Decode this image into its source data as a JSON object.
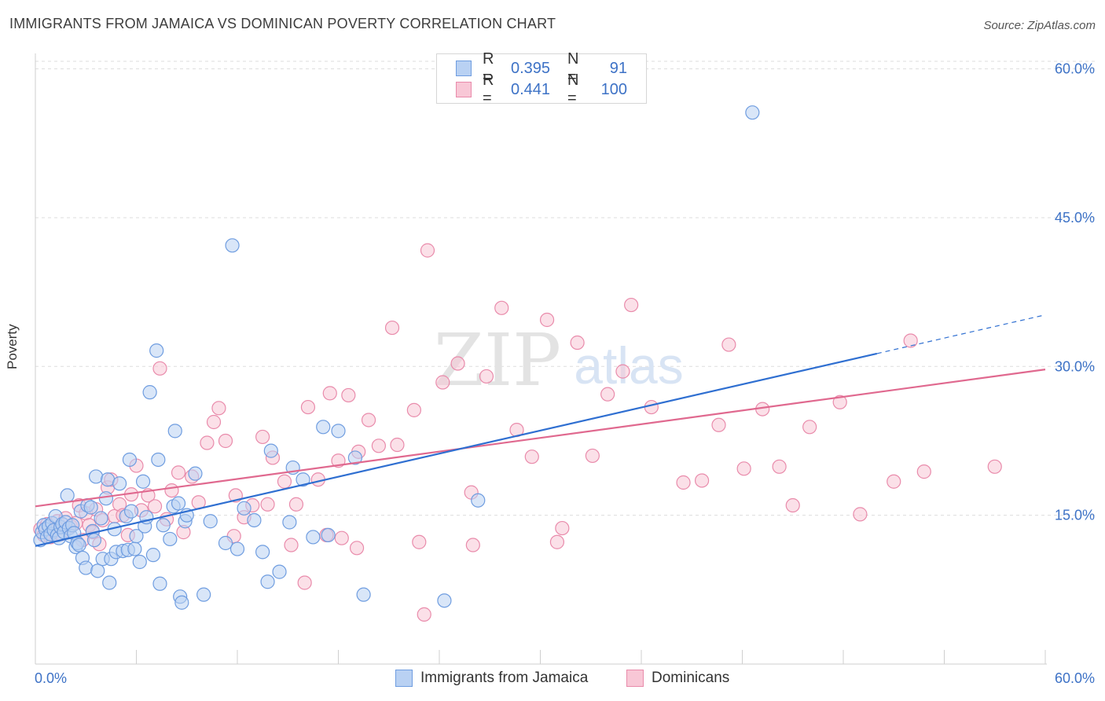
{
  "title": "IMMIGRANTS FROM JAMAICA VS DOMINICAN POVERTY CORRELATION CHART",
  "source": "Source: ZipAtlas.com",
  "watermark": {
    "zip": "ZIP",
    "atlas": "atlas"
  },
  "legend": {
    "r_label": "R =",
    "n_label": "N =",
    "entries": [
      {
        "name": "Immigrants from Jamaica",
        "r": "0.395",
        "n": "91",
        "fill": "#b9d1f3",
        "stroke": "#6f9de0"
      },
      {
        "name": "Dominicans",
        "r": "0.441",
        "n": "100",
        "fill": "#f8c7d6",
        "stroke": "#e98bab"
      }
    ]
  },
  "colors": {
    "blue_line": "#2f6fd1",
    "pink_line": "#e0698f",
    "axis_label": "#3d72c6",
    "grid": "#dddddd"
  },
  "chart_data": {
    "type": "scatter",
    "title": "IMMIGRANTS FROM JAMAICA VS DOMINICAN POVERTY CORRELATION CHART",
    "xlabel": "",
    "ylabel": "Poverty",
    "xlim": [
      0,
      60
    ],
    "ylim": [
      0,
      61
    ],
    "x_tick_labels": [
      "0.0%",
      "60.0%"
    ],
    "y_ticks": [
      15,
      30,
      45,
      60
    ],
    "y_tick_labels": [
      "15.0%",
      "30.0%",
      "45.0%",
      "60.0%"
    ],
    "grid": "horizontal dashed",
    "legend_position": "top-center",
    "series": [
      {
        "name": "Immigrants from Jamaica",
        "color": "#6f9de0",
        "trend": {
          "x": [
            0,
            50,
            60
          ],
          "y": [
            11.9,
            31.3,
            35.2
          ],
          "solid_until": 50
        },
        "points": [
          [
            0.3,
            12.5
          ],
          [
            0.4,
            13.3
          ],
          [
            0.5,
            14.0
          ],
          [
            0.6,
            13.6
          ],
          [
            0.7,
            12.8
          ],
          [
            0.8,
            13.9
          ],
          [
            0.9,
            13.1
          ],
          [
            1.0,
            14.2
          ],
          [
            1.1,
            13.5
          ],
          [
            1.2,
            14.9
          ],
          [
            1.3,
            13.0
          ],
          [
            1.4,
            12.7
          ],
          [
            1.5,
            13.8
          ],
          [
            1.6,
            14.1
          ],
          [
            1.7,
            13.3
          ],
          [
            1.8,
            14.3
          ],
          [
            1.9,
            17.0
          ],
          [
            2.0,
            13.7
          ],
          [
            2.1,
            12.9
          ],
          [
            2.2,
            14.0
          ],
          [
            2.3,
            13.2
          ],
          [
            2.4,
            11.8
          ],
          [
            2.5,
            12.2
          ],
          [
            2.6,
            12.0
          ],
          [
            2.7,
            15.4
          ],
          [
            2.8,
            10.7
          ],
          [
            3.0,
            9.7
          ],
          [
            3.1,
            16.0
          ],
          [
            3.3,
            15.8
          ],
          [
            3.4,
            13.4
          ],
          [
            3.5,
            12.5
          ],
          [
            3.6,
            18.9
          ],
          [
            3.7,
            9.4
          ],
          [
            3.9,
            14.7
          ],
          [
            4.0,
            10.6
          ],
          [
            4.2,
            16.7
          ],
          [
            4.3,
            18.6
          ],
          [
            4.4,
            8.2
          ],
          [
            4.5,
            10.6
          ],
          [
            4.7,
            13.6
          ],
          [
            4.8,
            11.3
          ],
          [
            5.0,
            18.2
          ],
          [
            5.2,
            11.4
          ],
          [
            5.4,
            14.9
          ],
          [
            5.5,
            11.5
          ],
          [
            5.6,
            20.6
          ],
          [
            5.7,
            15.4
          ],
          [
            5.9,
            11.6
          ],
          [
            6.0,
            12.9
          ],
          [
            6.2,
            10.3
          ],
          [
            6.4,
            18.4
          ],
          [
            6.5,
            13.9
          ],
          [
            6.6,
            14.8
          ],
          [
            6.8,
            27.4
          ],
          [
            7.0,
            11.0
          ],
          [
            7.2,
            31.6
          ],
          [
            7.3,
            20.6
          ],
          [
            7.4,
            8.1
          ],
          [
            7.6,
            14.0
          ],
          [
            8.0,
            12.6
          ],
          [
            8.2,
            15.9
          ],
          [
            8.3,
            23.5
          ],
          [
            8.6,
            6.8
          ],
          [
            8.9,
            14.4
          ],
          [
            9.0,
            15.0
          ],
          [
            9.5,
            19.2
          ],
          [
            10.4,
            14.4
          ],
          [
            11.3,
            12.2
          ],
          [
            11.7,
            42.2
          ],
          [
            12.4,
            15.7
          ],
          [
            13.5,
            11.3
          ],
          [
            13.8,
            8.3
          ],
          [
            14.0,
            21.5
          ],
          [
            15.1,
            14.3
          ],
          [
            15.9,
            18.6
          ],
          [
            17.1,
            23.9
          ],
          [
            17.4,
            13.0
          ],
          [
            18.0,
            23.5
          ],
          [
            19.0,
            20.8
          ],
          [
            24.3,
            6.4
          ],
          [
            26.3,
            16.5
          ],
          [
            42.6,
            55.6
          ],
          [
            8.7,
            6.2
          ],
          [
            10.0,
            7.0
          ],
          [
            12.0,
            11.6
          ],
          [
            14.5,
            9.3
          ],
          [
            15.3,
            19.8
          ],
          [
            13.0,
            14.5
          ],
          [
            16.5,
            12.8
          ],
          [
            19.5,
            7.0
          ],
          [
            8.5,
            16.2
          ]
        ]
      },
      {
        "name": "Dominicans",
        "color": "#e98bab",
        "trend": {
          "x": [
            0,
            60
          ],
          "y": [
            15.9,
            29.7
          ]
        },
        "points": [
          [
            0.3,
            13.6
          ],
          [
            0.5,
            13.0
          ],
          [
            0.7,
            14.1
          ],
          [
            0.9,
            12.8
          ],
          [
            1.1,
            13.4
          ],
          [
            1.3,
            14.4
          ],
          [
            1.5,
            13.1
          ],
          [
            1.8,
            14.7
          ],
          [
            2.1,
            13.9
          ],
          [
            2.4,
            14.2
          ],
          [
            2.6,
            16.0
          ],
          [
            2.8,
            12.5
          ],
          [
            3.0,
            15.2
          ],
          [
            3.2,
            14.0
          ],
          [
            3.4,
            13.3
          ],
          [
            3.6,
            15.6
          ],
          [
            3.8,
            12.1
          ],
          [
            4.0,
            14.5
          ],
          [
            4.3,
            17.8
          ],
          [
            4.5,
            18.6
          ],
          [
            4.7,
            14.9
          ],
          [
            5.0,
            16.1
          ],
          [
            5.2,
            15.0
          ],
          [
            5.5,
            13.0
          ],
          [
            5.7,
            17.1
          ],
          [
            6.0,
            20.0
          ],
          [
            6.3,
            15.5
          ],
          [
            6.7,
            17.0
          ],
          [
            7.1,
            15.9
          ],
          [
            7.4,
            29.8
          ],
          [
            7.8,
            14.6
          ],
          [
            8.1,
            17.5
          ],
          [
            8.5,
            19.3
          ],
          [
            8.8,
            13.3
          ],
          [
            9.3,
            18.9
          ],
          [
            9.7,
            16.3
          ],
          [
            10.2,
            22.3
          ],
          [
            10.6,
            24.4
          ],
          [
            10.9,
            25.8
          ],
          [
            11.3,
            22.5
          ],
          [
            11.9,
            17.0
          ],
          [
            12.4,
            14.8
          ],
          [
            12.9,
            16.0
          ],
          [
            13.5,
            22.9
          ],
          [
            14.1,
            20.8
          ],
          [
            14.8,
            18.4
          ],
          [
            15.5,
            16.1
          ],
          [
            16.2,
            25.9
          ],
          [
            16.8,
            18.6
          ],
          [
            17.5,
            27.3
          ],
          [
            18.0,
            20.5
          ],
          [
            18.6,
            27.1
          ],
          [
            19.2,
            21.4
          ],
          [
            19.8,
            24.6
          ],
          [
            20.4,
            22.0
          ],
          [
            21.2,
            33.9
          ],
          [
            22.5,
            25.6
          ],
          [
            23.3,
            41.7
          ],
          [
            24.2,
            28.4
          ],
          [
            25.1,
            30.3
          ],
          [
            25.9,
            17.3
          ],
          [
            26.8,
            29.0
          ],
          [
            27.7,
            35.9
          ],
          [
            28.6,
            23.6
          ],
          [
            29.5,
            20.9
          ],
          [
            30.4,
            34.7
          ],
          [
            31.3,
            13.7
          ],
          [
            32.2,
            32.4
          ],
          [
            33.1,
            21.0
          ],
          [
            34.0,
            27.2
          ],
          [
            34.9,
            29.5
          ],
          [
            35.4,
            36.2
          ],
          [
            36.6,
            25.9
          ],
          [
            38.5,
            18.3
          ],
          [
            39.6,
            18.5
          ],
          [
            40.6,
            24.1
          ],
          [
            41.2,
            32.2
          ],
          [
            42.1,
            19.7
          ],
          [
            43.2,
            25.7
          ],
          [
            44.2,
            19.9
          ],
          [
            45.0,
            16.0
          ],
          [
            46.0,
            23.9
          ],
          [
            47.8,
            26.4
          ],
          [
            49.0,
            15.1
          ],
          [
            51.0,
            18.4
          ],
          [
            52.0,
            32.6
          ],
          [
            52.8,
            19.4
          ],
          [
            57.0,
            19.9
          ],
          [
            31.0,
            12.3
          ],
          [
            23.1,
            5.0
          ],
          [
            16.0,
            8.2
          ],
          [
            15.2,
            12.0
          ],
          [
            18.2,
            12.7
          ],
          [
            19.1,
            11.7
          ],
          [
            22.8,
            12.3
          ],
          [
            17.3,
            13.0
          ],
          [
            11.8,
            12.9
          ],
          [
            21.5,
            22.1
          ],
          [
            13.8,
            16.1
          ],
          [
            26.0,
            12.0
          ]
        ]
      }
    ]
  }
}
